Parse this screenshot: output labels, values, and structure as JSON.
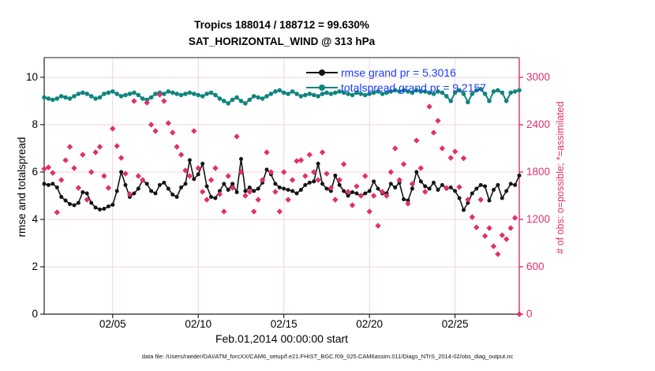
{
  "figure": {
    "title_line1": "Tropics 188014 / 188712 = 99.630%",
    "title_line2": "SAT_HORIZONTAL_WIND @ 313 hPa",
    "footer": "data file: /Users/raeder/DAI/ATM_forcXX/CAM6_setup/f.e21.FHIST_BGC.f09_025.CAM6assim.011/Diags_NTrS_2014-02/obs_diag_output.nc"
  },
  "colors": {
    "rmse": "#141414",
    "totalspread": "#108480",
    "obs": "#e0316b",
    "legend_text": "#1a3cff",
    "grid": "#f0d3dc",
    "axis_black": "#222222",
    "axis_pink": "#e0316b"
  },
  "chart_data": {
    "type": "line",
    "title": "Tropics 188014 / 188712 = 99.630%  SAT_HORIZONTAL_WIND @ 313 hPa",
    "x_label": "Feb.01,2014 00:00:00 start",
    "y_left_label": "rmse and totalspread",
    "y_right_label": "# of obs: o=possible; *=assimilated",
    "grid": true,
    "legend_position": "top-right-inside",
    "x_ticks": [
      {
        "day": 4,
        "label": "02/05"
      },
      {
        "day": 9,
        "label": "02/10"
      },
      {
        "day": 14,
        "label": "02/15"
      },
      {
        "day": 19,
        "label": "02/20"
      },
      {
        "day": 24,
        "label": "02/25"
      }
    ],
    "y_left_ticks": [
      0,
      2,
      4,
      6,
      8,
      10
    ],
    "y_right_ticks": [
      0,
      600,
      1200,
      1800,
      2400,
      3000
    ],
    "x_range_days": [
      0,
      27.75
    ],
    "y_left_range": [
      0,
      10.83
    ],
    "y_right_range": [
      0,
      3250
    ],
    "x_start_day": 0,
    "x_step_days": 0.25,
    "legend": [
      {
        "label": "rmse grand pr = 5.3016",
        "series": "rmse"
      },
      {
        "label": "totalspread grand pr = 9.2157",
        "series": "totalspread"
      }
    ],
    "series": [
      {
        "name": "rmse",
        "axis": "left",
        "marker": "dot",
        "line": true,
        "grand_pr": 5.3016,
        "values": [
          5.5,
          5.45,
          5.5,
          5.35,
          4.95,
          4.8,
          4.65,
          4.6,
          4.7,
          5.15,
          5.1,
          4.7,
          4.5,
          4.42,
          4.45,
          4.55,
          4.62,
          5.2,
          6.0,
          5.45,
          4.95,
          5.1,
          5.3,
          5.65,
          5.5,
          5.2,
          5.1,
          5.45,
          5.55,
          5.3,
          5.05,
          4.95,
          5.35,
          5.5,
          6.5,
          5.7,
          5.9,
          6.35,
          5.4,
          4.95,
          4.9,
          5.2,
          5.5,
          5.25,
          5.5,
          5.15,
          6.55,
          5.2,
          5.35,
          5.2,
          5.3,
          5.55,
          6.1,
          5.9,
          5.5,
          5.35,
          5.3,
          5.25,
          5.2,
          5.1,
          5.25,
          5.45,
          5.55,
          5.6,
          6.35,
          5.5,
          5.3,
          5.2,
          5.85,
          5.45,
          5.2,
          5.0,
          5.15,
          5.1,
          5.0,
          5.1,
          5.2,
          5.6,
          5.3,
          5.1,
          5.1,
          5.5,
          5.35,
          5.55,
          4.85,
          4.8,
          5.3,
          6.0,
          5.6,
          5.4,
          5.3,
          5.55,
          5.25,
          5.45,
          5.3,
          5.35,
          5.2,
          4.9,
          4.4,
          4.7,
          5.1,
          5.3,
          5.45,
          5.4,
          4.8,
          5.25,
          5.45,
          4.9,
          5.2,
          5.5,
          5.45,
          5.85
        ]
      },
      {
        "name": "totalspread",
        "axis": "left",
        "marker": "dot",
        "line": true,
        "grand_pr": 9.2157,
        "values": [
          9.15,
          9.1,
          9.05,
          9.1,
          9.2,
          9.15,
          9.1,
          9.2,
          9.3,
          9.35,
          9.3,
          9.2,
          9.1,
          9.15,
          9.3,
          9.35,
          9.4,
          9.3,
          9.2,
          9.25,
          9.3,
          9.35,
          9.25,
          9.1,
          9.05,
          9.15,
          9.3,
          9.35,
          9.3,
          9.4,
          9.35,
          9.3,
          9.25,
          9.3,
          9.35,
          9.3,
          9.25,
          9.2,
          9.3,
          9.35,
          9.25,
          9.1,
          9.0,
          8.9,
          9.05,
          9.15,
          9.0,
          8.9,
          9.05,
          9.2,
          9.15,
          9.1,
          9.2,
          9.3,
          9.4,
          9.45,
          9.35,
          9.3,
          9.4,
          9.3,
          9.2,
          9.25,
          9.3,
          9.25,
          9.2,
          9.3,
          9.35,
          9.3,
          9.35,
          9.4,
          9.35,
          9.3,
          9.25,
          9.35,
          9.3,
          9.25,
          9.3,
          9.35,
          9.4,
          9.3,
          9.35,
          9.4,
          9.45,
          9.4,
          9.45,
          9.4,
          9.35,
          9.45,
          9.4,
          9.4,
          9.35,
          9.3,
          9.4,
          9.35,
          9.2,
          9.0,
          9.35,
          9.45,
          9.3,
          8.95,
          9.3,
          9.45,
          9.5,
          9.3,
          9.0,
          9.4,
          9.45,
          9.35,
          9.0,
          9.35,
          9.4,
          9.45
        ]
      },
      {
        "name": "obs_count",
        "axis": "right",
        "marker": "star-circle",
        "line": false,
        "values": [
          1840,
          1860,
          1790,
          1290,
          1700,
          1950,
          2120,
          1850,
          1600,
          2020,
          1450,
          1800,
          2050,
          2120,
          1750,
          1600,
          2350,
          2130,
          1980,
          1780,
          1520,
          2700,
          1750,
          1700,
          2680,
          2400,
          2320,
          2780,
          2700,
          2420,
          2300,
          2120,
          2020,
          1820,
          1750,
          2320,
          1850,
          1550,
          1450,
          1700,
          1850,
          1520,
          1300,
          1750,
          1600,
          2250,
          1800,
          1500,
          1550,
          1300,
          1450,
          1700,
          2050,
          1800,
          1550,
          1300,
          1800,
          1450,
          1700,
          1940,
          1950,
          1750,
          2020,
          1800,
          1700,
          2050,
          1780,
          1600,
          1450,
          1700,
          1900,
          1550,
          1380,
          1620,
          1500,
          1750,
          1300,
          1500,
          1120,
          1550,
          1500,
          1800,
          2100,
          1700,
          1900,
          1400,
          1650,
          2200,
          1850,
          1550,
          2630,
          2300,
          2450,
          2100,
          1600,
          1980,
          2060,
          1610,
          1975,
          1450,
          1230,
          1100,
          1450,
          990,
          1090,
          860,
          760,
          1000,
          950,
          1090,
          1220,
          0
        ]
      }
    ]
  }
}
